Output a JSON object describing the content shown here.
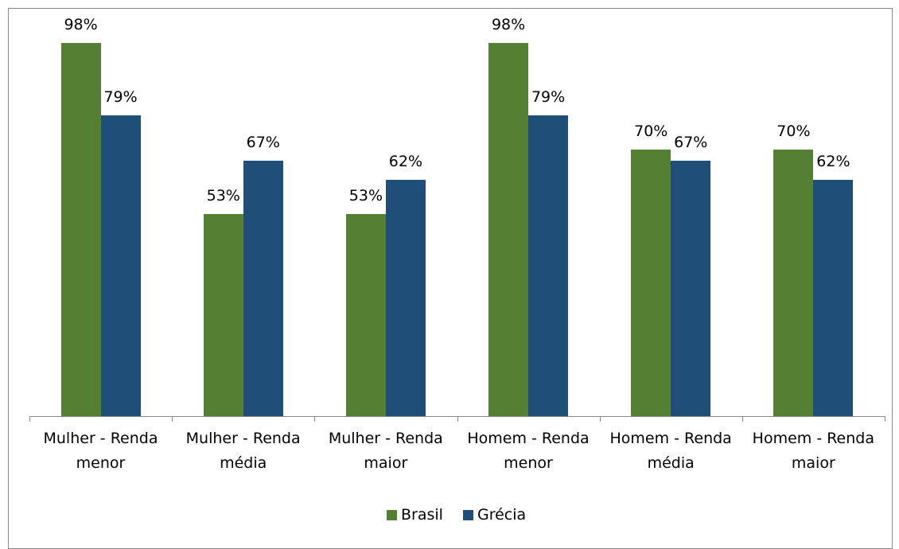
{
  "chart_data": {
    "type": "bar",
    "categories": [
      "Mulher - Renda menor",
      "Mulher - Renda média",
      "Mulher - Renda maior",
      "Homem - Renda menor",
      "Homem - Renda média",
      "Homem - Renda maior"
    ],
    "series": [
      {
        "name": "Brasil",
        "color": "#558033",
        "values": [
          98,
          53,
          53,
          98,
          70,
          70
        ],
        "value_labels": [
          "98%",
          "53%",
          "53%",
          "98%",
          "70%",
          "70%"
        ]
      },
      {
        "name": "Grécia",
        "color": "#1f4e79",
        "values": [
          79,
          67,
          62,
          79,
          67,
          62
        ],
        "value_labels": [
          "79%",
          "67%",
          "62%",
          "79%",
          "67%",
          "62%"
        ]
      }
    ],
    "legend": "bottom"
  }
}
